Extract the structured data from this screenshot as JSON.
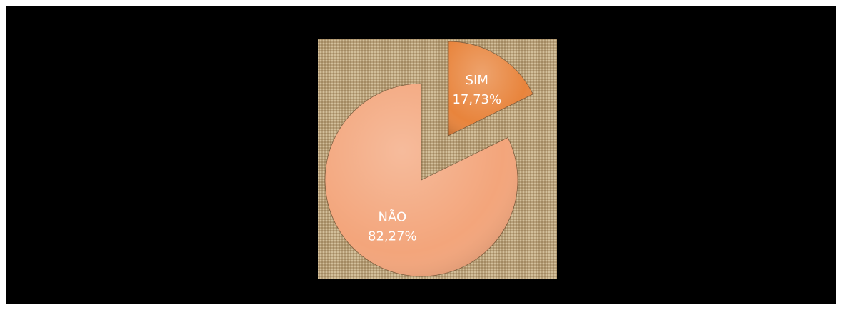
{
  "chart_data": {
    "type": "pie",
    "categories": [
      "SIM",
      "NÃO"
    ],
    "values": [
      17.73,
      82.27
    ],
    "value_labels": [
      "17,73%",
      "82,27%"
    ],
    "colors": [
      "#e8843c",
      "#f3a57b"
    ]
  }
}
